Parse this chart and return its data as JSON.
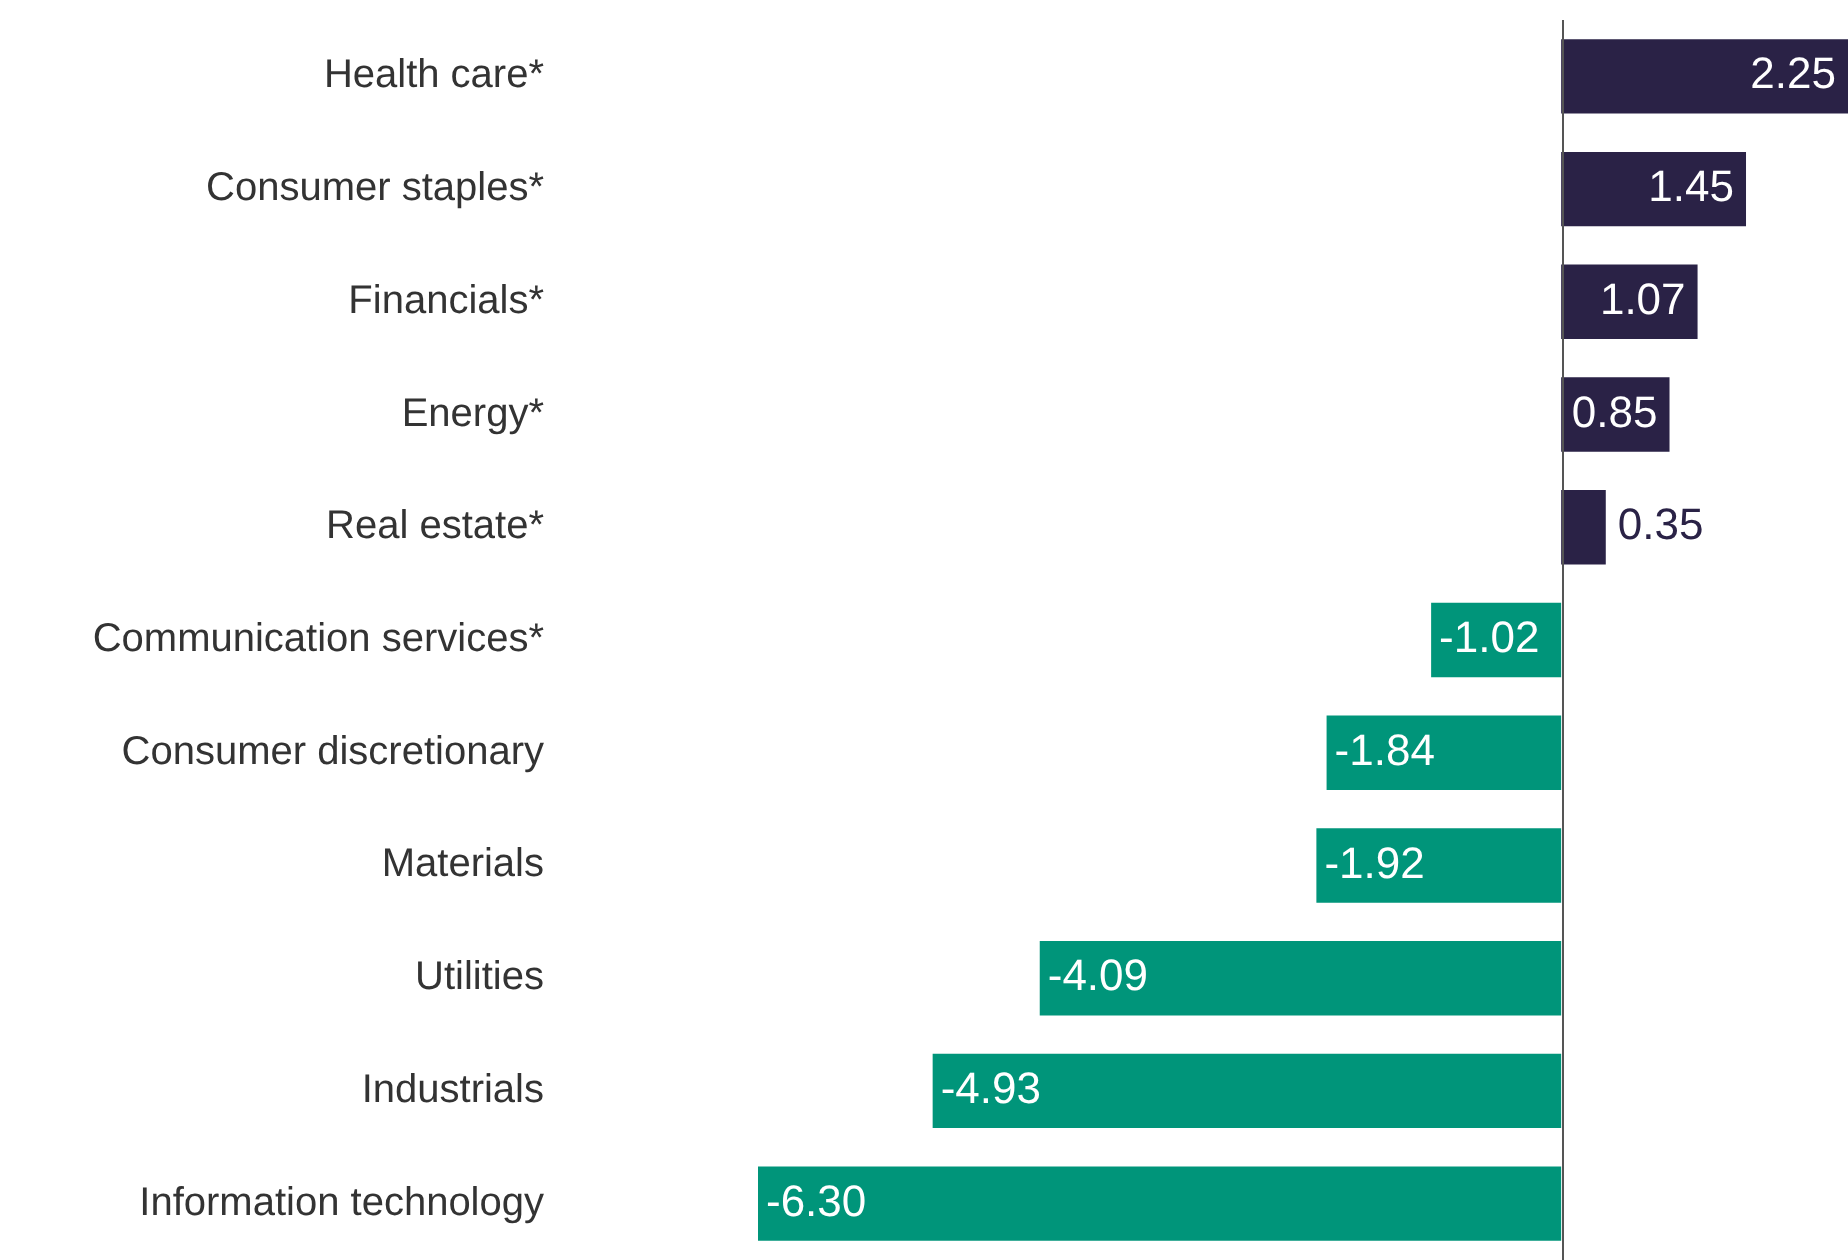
{
  "chart_data": {
    "type": "bar",
    "orientation": "horizontal",
    "value_labels": [
      "2.25",
      "1.45",
      "1.07",
      "0.85",
      "0.35",
      "-1.02",
      "-1.84",
      "-1.92",
      "-4.09",
      "-4.93",
      "-6.30"
    ],
    "legend": false,
    "grid": false,
    "categories": [
      "Health care*",
      "Consumer staples*",
      "Financials*",
      "Energy*",
      "Real estate*",
      "Communication services*",
      "Consumer discretionary",
      "Materials",
      "Utilities",
      "Industrials",
      "Information technology"
    ],
    "values": [
      2.25,
      1.45,
      1.07,
      0.85,
      0.35,
      -1.02,
      -1.84,
      -1.92,
      -4.09,
      -4.93,
      -6.3
    ],
    "colors": [
      "#2a2246",
      "#2a2246",
      "#2a2246",
      "#2a2246",
      "#2a2246",
      "#00957a",
      "#00957a",
      "#00957a",
      "#00957a",
      "#00957a",
      "#00957a"
    ]
  }
}
